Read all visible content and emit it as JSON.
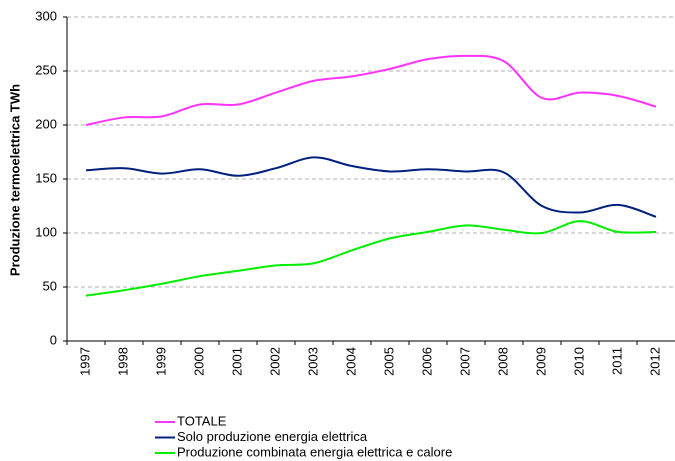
{
  "chart_data": {
    "type": "line",
    "y_label": "Produzione termoelettrica TWh",
    "categories": [
      "1997",
      "1998",
      "1999",
      "2000",
      "2001",
      "2002",
      "2003",
      "2004",
      "2005",
      "2006",
      "2007",
      "2008",
      "2009",
      "2010",
      "2011",
      "2012"
    ],
    "series": [
      {
        "name": "TOTALE",
        "color": "#ff33ff",
        "values": [
          200,
          207,
          208,
          219,
          219,
          230,
          241,
          245,
          252,
          261,
          264,
          259,
          225,
          230,
          227,
          217
        ]
      },
      {
        "name": "Solo produzione energia elettrica",
        "color": "#002080",
        "values": [
          158,
          160,
          155,
          159,
          153,
          160,
          170,
          162,
          157,
          159,
          157,
          156,
          125,
          119,
          126,
          115
        ]
      },
      {
        "name": "Produzione combinata energia elettrica e calore",
        "color": "#00ee00",
        "values": [
          42,
          47,
          53,
          60,
          65,
          70,
          72,
          84,
          95,
          101,
          107,
          103,
          100,
          111,
          101,
          101
        ]
      }
    ],
    "ylim": [
      0,
      300
    ],
    "yticks": [
      0,
      50,
      100,
      150,
      200,
      250,
      300
    ],
    "grid": true,
    "smooth": true,
    "legend": "bottom"
  }
}
